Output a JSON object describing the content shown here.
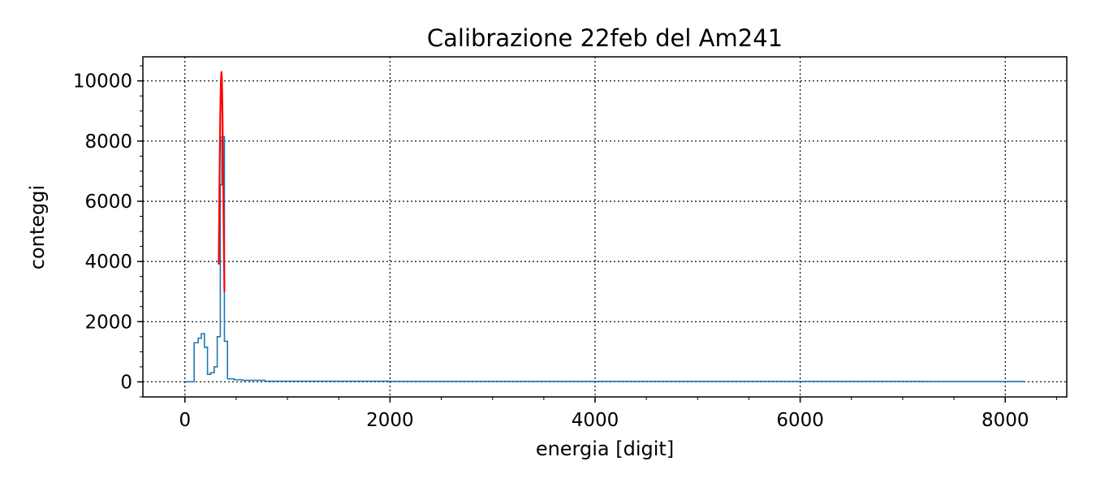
{
  "chart_data": {
    "type": "line",
    "title": "Calibrazione 22feb del Am241",
    "xlabel": "energia [digit]",
    "ylabel": "conteggi",
    "xlim": [
      -410,
      8600
    ],
    "ylim": [
      -500,
      10800
    ],
    "xticks": [
      0,
      2000,
      4000,
      6000,
      8000
    ],
    "yticks": [
      0,
      2000,
      4000,
      6000,
      8000,
      10000
    ],
    "grid": true,
    "series": [
      {
        "kind": "histogram-step",
        "color": "#1f77b4",
        "x": [
          0,
          90,
          130,
          160,
          190,
          220,
          250,
          285,
          315,
          345,
          360,
          385,
          415,
          480,
          560,
          780,
          2000,
          7000,
          7200,
          7800,
          7950,
          8192
        ],
        "y": [
          5,
          1300,
          1450,
          1600,
          1150,
          250,
          300,
          500,
          1500,
          6550,
          8150,
          1350,
          100,
          70,
          50,
          20,
          15,
          15,
          10,
          10,
          10,
          10
        ]
      },
      {
        "kind": "gaussian-fit",
        "color": "#ff0000",
        "x": [
          330,
          337,
          344,
          351,
          356,
          360,
          365,
          372,
          379,
          385
        ],
        "y": [
          3900,
          6500,
          8700,
          10000,
          10300,
          10100,
          9200,
          7100,
          4900,
          3000
        ]
      }
    ]
  }
}
